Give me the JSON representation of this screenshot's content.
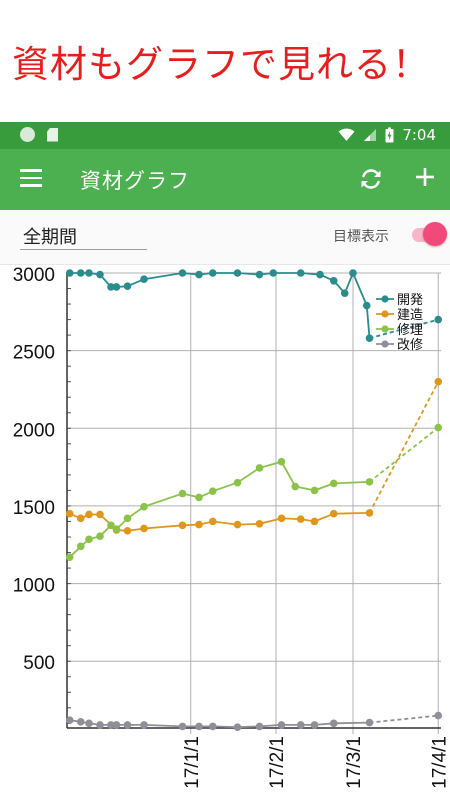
{
  "promo": {
    "text": "資材もグラフで見れる！"
  },
  "status_bar": {
    "time": "7:04",
    "icons": [
      "notification-circle-icon",
      "sd-card-icon",
      "wifi-icon",
      "signal-icon",
      "battery-charging-icon"
    ]
  },
  "app_bar": {
    "title": "資材グラフ",
    "icons": [
      "menu-icon",
      "refresh-icon",
      "add-icon"
    ]
  },
  "filters": {
    "period": "全期間",
    "goal_label": "目標表示",
    "goal_toggle_on": true
  },
  "colors": {
    "status_bar": "#389c3c",
    "app_bar": "#4caf50",
    "promo_text": "#e81e1e",
    "toggle": "#f3487a"
  },
  "chart_data": {
    "type": "line",
    "ylim": [
      70,
      3000
    ],
    "y_ticks": [
      500,
      1000,
      1500,
      2000,
      2500,
      3000
    ],
    "x_ticks": [
      "17/1/1",
      "17/2/1",
      "17/3/1",
      "17/4/1"
    ],
    "x_range": [
      "2016-11-17",
      "2017-04-02"
    ],
    "legend_position": "top-right",
    "grid": true,
    "series": [
      {
        "name": "開発",
        "color": "#2a8c8c",
        "points": [
          [
            "2016-11-18",
            3000
          ],
          [
            "2016-11-22",
            3000
          ],
          [
            "2016-11-25",
            3000
          ],
          [
            "2016-11-29",
            2990
          ],
          [
            "2016-12-03",
            2910
          ],
          [
            "2016-12-05",
            2910
          ],
          [
            "2016-12-09",
            2915
          ],
          [
            "2016-12-15",
            2960
          ],
          [
            "2016-12-29",
            3000
          ],
          [
            "2017-01-04",
            2990
          ],
          [
            "2017-01-09",
            3000
          ],
          [
            "2017-01-18",
            3000
          ],
          [
            "2017-01-26",
            2990
          ],
          [
            "2017-01-31",
            3000
          ],
          [
            "2017-02-10",
            3000
          ],
          [
            "2017-02-17",
            2990
          ],
          [
            "2017-02-22",
            2950
          ],
          [
            "2017-02-26",
            2870
          ],
          [
            "2017-03-01",
            3000
          ],
          [
            "2017-03-06",
            2790
          ],
          [
            "2017-03-07",
            2580
          ]
        ],
        "goal": [
          [
            "2017-03-07",
            2580
          ],
          [
            "2017-04-01",
            2700
          ]
        ]
      },
      {
        "name": "建造",
        "color": "#e0961c",
        "points": [
          [
            "2016-11-18",
            1450
          ],
          [
            "2016-11-22",
            1420
          ],
          [
            "2016-11-25",
            1445
          ],
          [
            "2016-11-29",
            1445
          ],
          [
            "2016-12-05",
            1345
          ],
          [
            "2016-12-09",
            1340
          ],
          [
            "2016-12-15",
            1355
          ],
          [
            "2016-12-29",
            1375
          ],
          [
            "2017-01-04",
            1380
          ],
          [
            "2017-01-09",
            1400
          ],
          [
            "2017-01-18",
            1380
          ],
          [
            "2017-01-26",
            1385
          ],
          [
            "2017-02-03",
            1420
          ],
          [
            "2017-02-10",
            1415
          ],
          [
            "2017-02-15",
            1400
          ],
          [
            "2017-02-22",
            1450
          ],
          [
            "2017-03-07",
            1455
          ]
        ],
        "goal": [
          [
            "2017-03-07",
            1455
          ],
          [
            "2017-04-01",
            2300
          ]
        ]
      },
      {
        "name": "修理",
        "color": "#8bc34a",
        "points": [
          [
            "2016-11-18",
            1170
          ],
          [
            "2016-11-22",
            1240
          ],
          [
            "2016-11-25",
            1285
          ],
          [
            "2016-11-29",
            1305
          ],
          [
            "2016-12-03",
            1375
          ],
          [
            "2016-12-05",
            1350
          ],
          [
            "2016-12-09",
            1420
          ],
          [
            "2016-12-15",
            1495
          ],
          [
            "2016-12-29",
            1580
          ],
          [
            "2017-01-04",
            1555
          ],
          [
            "2017-01-09",
            1595
          ],
          [
            "2017-01-18",
            1650
          ],
          [
            "2017-01-26",
            1745
          ],
          [
            "2017-02-03",
            1785
          ],
          [
            "2017-02-08",
            1625
          ],
          [
            "2017-02-15",
            1600
          ],
          [
            "2017-02-22",
            1645
          ],
          [
            "2017-03-07",
            1655
          ]
        ],
        "goal": [
          [
            "2017-03-07",
            1655
          ],
          [
            "2017-04-01",
            2005
          ]
        ]
      },
      {
        "name": "改修",
        "color": "#8f8f99",
        "points": [
          [
            "2016-11-18",
            120
          ],
          [
            "2016-11-22",
            110
          ],
          [
            "2016-11-25",
            100
          ],
          [
            "2016-11-29",
            90
          ],
          [
            "2016-12-03",
            90
          ],
          [
            "2016-12-05",
            90
          ],
          [
            "2016-12-09",
            90
          ],
          [
            "2016-12-15",
            90
          ],
          [
            "2016-12-29",
            80
          ],
          [
            "2017-01-04",
            80
          ],
          [
            "2017-01-09",
            80
          ],
          [
            "2017-01-18",
            75
          ],
          [
            "2017-01-26",
            80
          ],
          [
            "2017-02-03",
            90
          ],
          [
            "2017-02-10",
            90
          ],
          [
            "2017-02-15",
            90
          ],
          [
            "2017-02-22",
            100
          ],
          [
            "2017-03-07",
            105
          ]
        ],
        "goal": [
          [
            "2017-03-07",
            105
          ],
          [
            "2017-04-01",
            150
          ]
        ]
      }
    ]
  }
}
